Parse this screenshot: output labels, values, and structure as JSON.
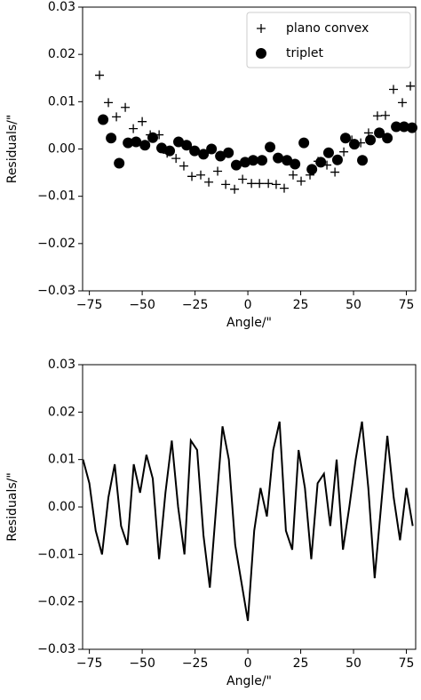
{
  "chart_data": [
    {
      "type": "scatter",
      "xlabel": "Angle/\"",
      "ylabel": "Residuals/\"",
      "xlim": [
        -78.2,
        79.4
      ],
      "ylim": [
        -0.03,
        0.03
      ],
      "xticks": [
        {
          "value": -75,
          "label": "−75"
        },
        {
          "value": -50,
          "label": "−50"
        },
        {
          "value": -25,
          "label": "−25"
        },
        0,
        25,
        50,
        75
      ],
      "yticks": [
        {
          "value": -0.03,
          "label": "−0.03"
        },
        {
          "value": -0.02,
          "label": "−0.02"
        },
        {
          "value": -0.01,
          "label": "−0.01"
        },
        {
          "value": 0,
          "label": "0.00"
        },
        0.01,
        0.02,
        0.03
      ],
      "legend": "upper right",
      "series": [
        {
          "name": "plano convex",
          "marker": "plus",
          "color": "#000000",
          "x": [
            -70.2,
            -66,
            -62.2,
            -58,
            -54.2,
            -50,
            -46.2,
            -42,
            -38.2,
            -34,
            -30.3,
            -26.5,
            -22.3,
            -18.5,
            -14.3,
            -10.5,
            -6.3,
            -2.5,
            1.7,
            5.5,
            9.7,
            13.4,
            17.2,
            21.4,
            25.2,
            29.4,
            33.2,
            37.4,
            41.2,
            45.4,
            49.2,
            53.4,
            57.1,
            61.3,
            65.1,
            68.9,
            73.1,
            76.9
          ],
          "values": [
            0.0156,
            0.0098,
            0.0068,
            0.0088,
            0.0043,
            0.0058,
            0.003,
            0.003,
            -0.0009,
            -0.002,
            -0.0036,
            -0.0058,
            -0.0055,
            -0.007,
            -0.0047,
            -0.0075,
            -0.0085,
            -0.0064,
            -0.0073,
            -0.0073,
            -0.0073,
            -0.0075,
            -0.0083,
            -0.0055,
            -0.0068,
            -0.0055,
            -0.0026,
            -0.0034,
            -0.0049,
            -0.0006,
            0.0019,
            0.0013,
            0.0034,
            0.007,
            0.0071,
            0.0126,
            0.0098,
            0.0133
          ]
        },
        {
          "name": "triplet",
          "marker": "circle",
          "color": "#000000",
          "x": [
            -68.5,
            -64.7,
            -60.9,
            -56.7,
            -52.9,
            -48.7,
            -45,
            -40.8,
            -37,
            -32.8,
            -29,
            -25.2,
            -21,
            -17.2,
            -13,
            -9.2,
            -5.5,
            -1.3,
            2.5,
            6.7,
            10.5,
            14.3,
            18.5,
            22.3,
            26.5,
            30.3,
            34.5,
            38.2,
            42.4,
            46.2,
            50.4,
            54.2,
            58,
            62.2,
            66,
            70.2,
            73.9,
            77.7
          ],
          "values": [
            0.0062,
            0.0023,
            -0.003,
            0.0013,
            0.0015,
            0.0008,
            0.0024,
            0.0002,
            -0.0004,
            0.0015,
            0.0008,
            -0.0004,
            -0.0011,
            0,
            -0.0015,
            -0.0008,
            -0.0034,
            -0.0028,
            -0.0024,
            -0.0024,
            0.0004,
            -0.0019,
            -0.0024,
            -0.0032,
            0.0013,
            -0.0043,
            -0.0028,
            -0.0008,
            -0.0023,
            0.0023,
            0.001,
            -0.0024,
            0.0019,
            0.0034,
            0.0023,
            0.0047,
            0.0047,
            0.0045
          ]
        }
      ]
    },
    {
      "type": "line",
      "xlabel": "Angle/\"",
      "ylabel": "Residuals/\"",
      "xlim": [
        -78.2,
        79.4
      ],
      "ylim": [
        -0.03,
        0.03
      ],
      "xticks": [
        {
          "value": -75,
          "label": "−75"
        },
        {
          "value": -50,
          "label": "−50"
        },
        {
          "value": -25,
          "label": "−25"
        },
        0,
        25,
        50,
        75
      ],
      "yticks": [
        {
          "value": -0.03,
          "label": "−0.03"
        },
        {
          "value": -0.02,
          "label": "−0.02"
        },
        {
          "value": -0.01,
          "label": "−0.01"
        },
        {
          "value": 0,
          "label": "0.00"
        },
        0.01,
        0.02,
        0.03
      ],
      "color": "#000000",
      "x": [
        -78,
        -75,
        -72,
        -69,
        -66,
        -63,
        -60,
        -57,
        -54,
        -51,
        -48,
        -45,
        -42,
        -39,
        -36,
        -33,
        -30,
        -27,
        -24,
        -21,
        -18,
        -15,
        -12,
        -9,
        -6,
        -3,
        0,
        3,
        6,
        9,
        12,
        15,
        18,
        21,
        24,
        27,
        30,
        33,
        36,
        39,
        42,
        45,
        48,
        51,
        54,
        57,
        60,
        63,
        66,
        69,
        72,
        75,
        78
      ],
      "values": [
        0.01,
        0.005,
        -0.005,
        -0.01,
        0.002,
        0.009,
        -0.004,
        -0.008,
        0.009,
        0.003,
        0.011,
        0.006,
        -0.011,
        0.003,
        0.014,
        0.0,
        -0.01,
        0.014,
        0.012,
        -0.006,
        -0.017,
        0.0,
        0.017,
        0.01,
        -0.008,
        -0.016,
        -0.024,
        -0.005,
        0.004,
        -0.002,
        0.012,
        0.018,
        -0.005,
        -0.009,
        0.012,
        0.004,
        -0.011,
        0.005,
        0.007,
        -0.004,
        0.01,
        -0.009,
        0.0,
        0.01,
        0.018,
        0.004,
        -0.015,
        0.0,
        0.015,
        0.002,
        -0.007,
        0.004,
        -0.004
      ]
    }
  ]
}
